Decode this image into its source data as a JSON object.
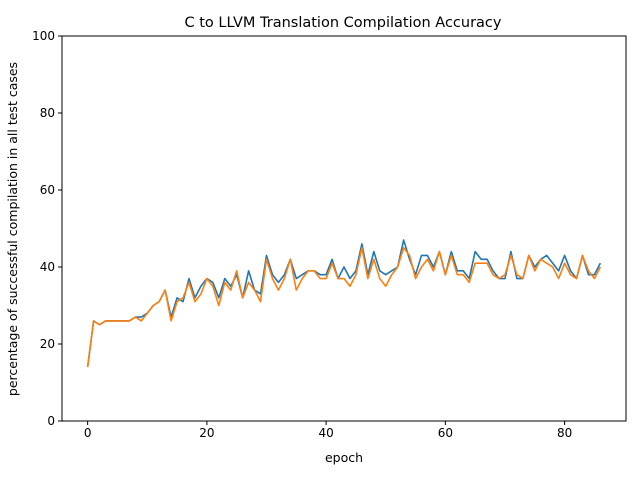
{
  "chart_data": {
    "type": "line",
    "title": "C to LLVM Translation Compilation Accuracy",
    "xlabel": "epoch",
    "ylabel": "percentage of successful compilation in all test cases",
    "xlim": [
      -4.3,
      90.3
    ],
    "ylim": [
      0,
      100
    ],
    "xticks": [
      0,
      20,
      40,
      60,
      80
    ],
    "yticks": [
      0,
      20,
      40,
      60,
      80,
      100
    ],
    "grid": false,
    "legend": "none",
    "x": [
      0,
      1,
      2,
      3,
      4,
      5,
      6,
      7,
      8,
      9,
      10,
      11,
      12,
      13,
      14,
      15,
      16,
      17,
      18,
      19,
      20,
      21,
      22,
      23,
      24,
      25,
      26,
      27,
      28,
      29,
      30,
      31,
      32,
      33,
      34,
      35,
      36,
      37,
      38,
      39,
      40,
      41,
      42,
      43,
      44,
      45,
      46,
      47,
      48,
      49,
      50,
      51,
      52,
      53,
      54,
      55,
      56,
      57,
      58,
      59,
      60,
      61,
      62,
      63,
      64,
      65,
      66,
      67,
      68,
      69,
      70,
      71,
      72,
      73,
      74,
      75,
      76,
      77,
      78,
      79,
      80,
      81,
      82,
      83,
      84,
      85,
      86
    ],
    "series": [
      {
        "color": "#1f77b4",
        "values": [
          14,
          26,
          25,
          26,
          26,
          26,
          26,
          26,
          27,
          27,
          28,
          30,
          31,
          34,
          27,
          32,
          31,
          37,
          32,
          35,
          37,
          36,
          32,
          37,
          35,
          38,
          32,
          39,
          34,
          33,
          43,
          38,
          36,
          38,
          42,
          37,
          38,
          39,
          39,
          38,
          38,
          42,
          37,
          40,
          37,
          39,
          46,
          38,
          44,
          39,
          38,
          39,
          40,
          47,
          42,
          38,
          43,
          43,
          40,
          44,
          38,
          44,
          39,
          39,
          37,
          44,
          42,
          42,
          39,
          37,
          37,
          44,
          37,
          37,
          43,
          40,
          42,
          43,
          41,
          39,
          43,
          39,
          37,
          43,
          38,
          38,
          41
        ]
      },
      {
        "color": "#ff7f0e",
        "values": [
          14,
          26,
          25,
          26,
          26,
          26,
          26,
          26,
          27,
          26,
          28,
          30,
          31,
          34,
          26,
          31,
          32,
          36,
          31,
          33,
          37,
          35,
          30,
          36,
          34,
          39,
          32,
          36,
          34,
          31,
          42,
          37,
          34,
          37,
          42,
          34,
          37,
          39,
          39,
          37,
          37,
          41,
          37,
          37,
          35,
          38,
          45,
          37,
          42,
          37,
          35,
          38,
          40,
          45,
          43,
          37,
          40,
          42,
          39,
          44,
          38,
          43,
          38,
          38,
          36,
          41,
          41,
          41,
          38,
          37,
          38,
          43,
          38,
          37,
          43,
          39,
          42,
          41,
          40,
          37,
          41,
          38,
          37,
          43,
          39,
          37,
          40
        ]
      }
    ]
  }
}
